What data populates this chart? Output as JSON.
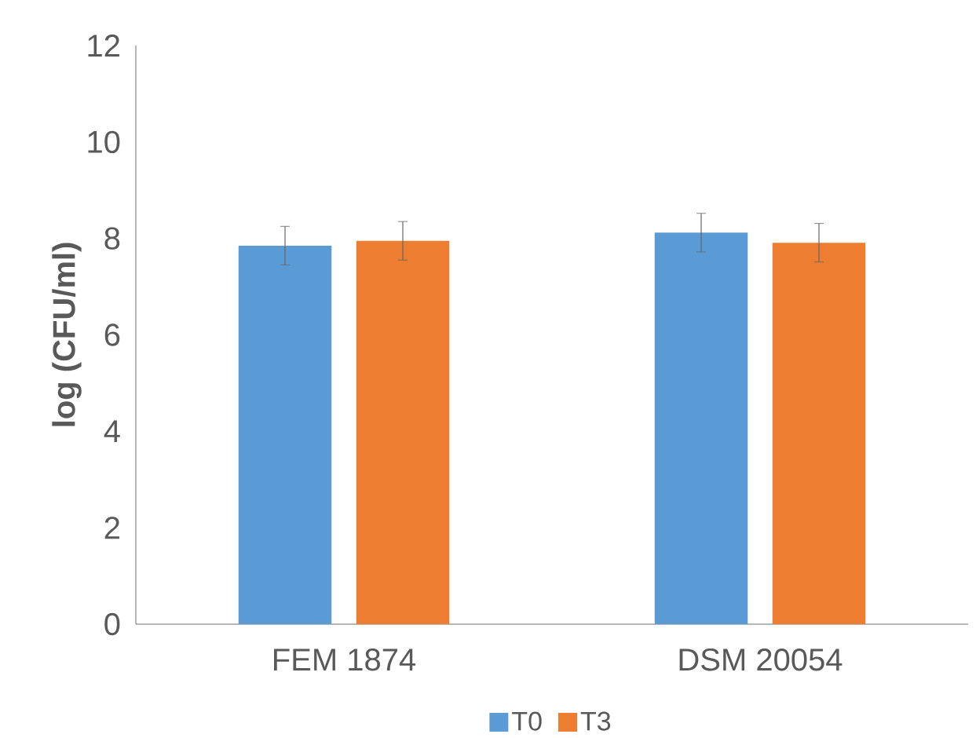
{
  "chart_data": {
    "type": "bar",
    "ylabel": "log (CFU/ml)",
    "categories": [
      "FEM 1874",
      "DSM 20054"
    ],
    "series": [
      {
        "name": "T0",
        "color": "#5b9bd5",
        "values": [
          7.85,
          8.12
        ],
        "errors": [
          0.4,
          0.4
        ]
      },
      {
        "name": "T3",
        "color": "#ed7d31",
        "values": [
          7.95,
          7.91
        ],
        "errors": [
          0.4,
          0.4
        ]
      }
    ],
    "ylim": [
      0,
      12
    ],
    "yticks": [
      0,
      2,
      4,
      6,
      8,
      10,
      12
    ],
    "legend": "bottom"
  }
}
